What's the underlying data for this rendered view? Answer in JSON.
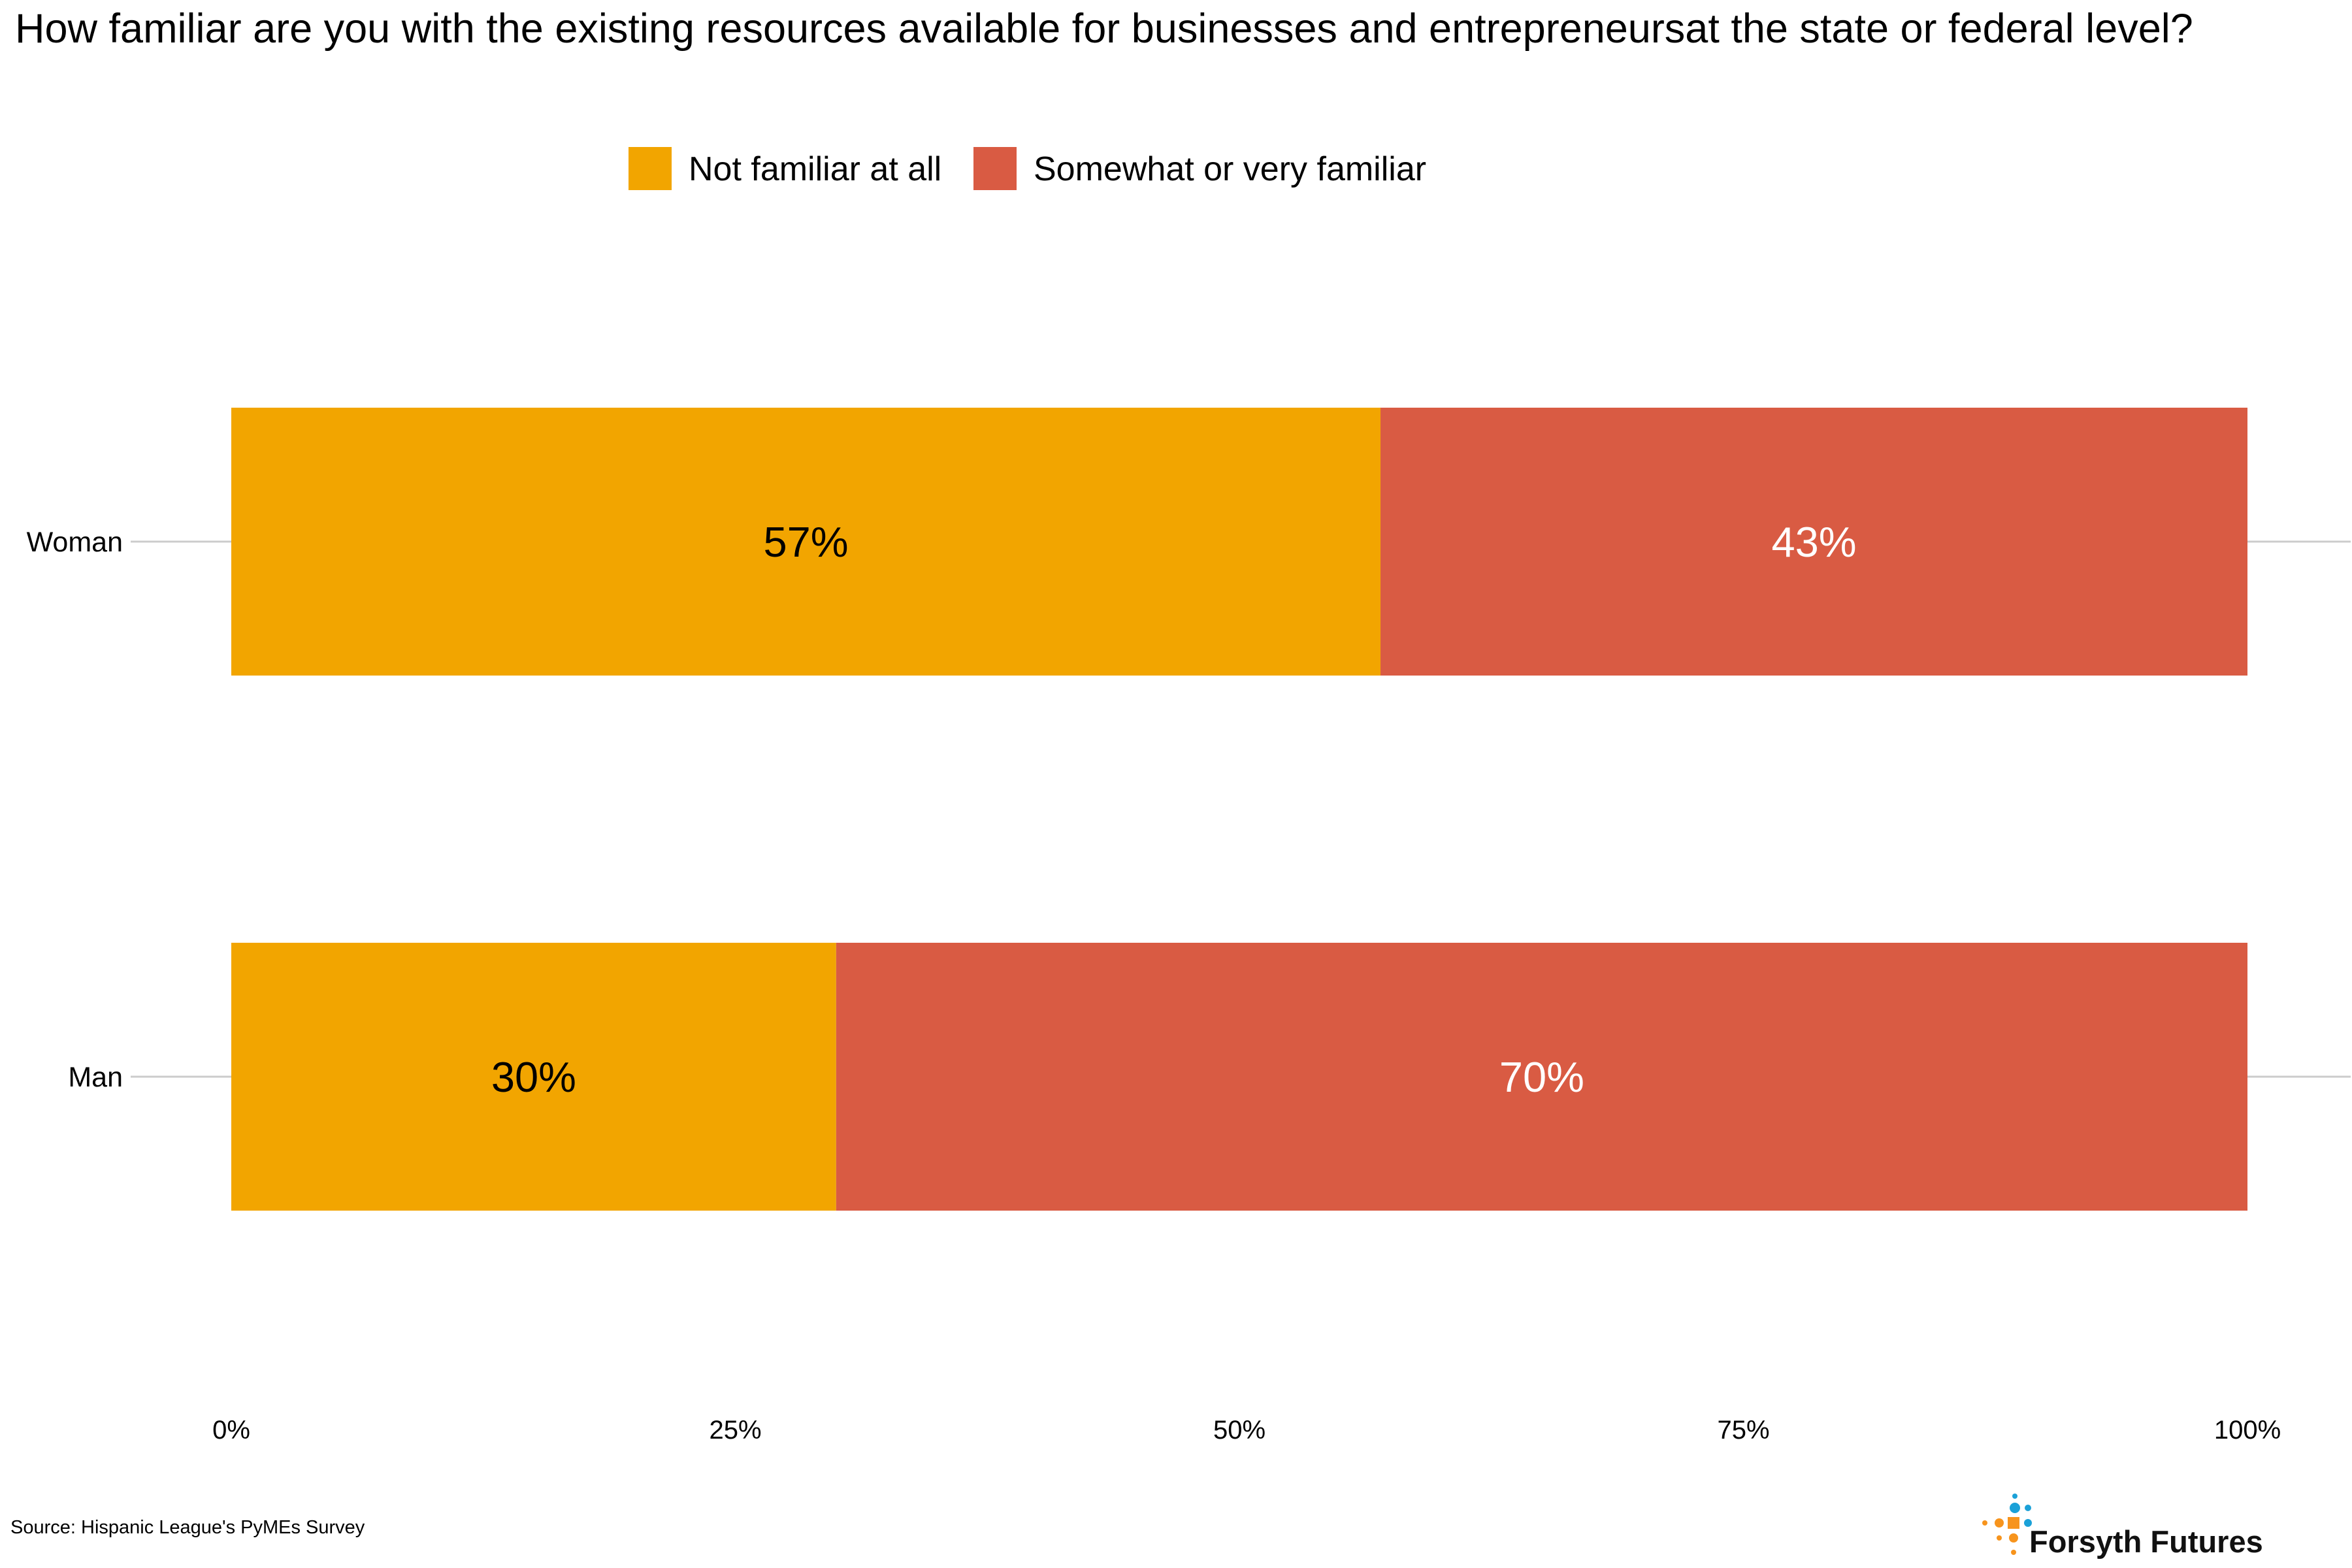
{
  "chart_data": {
    "type": "bar",
    "orientation": "horizontal",
    "stacked": true,
    "title": "How familiar are you with the existing resources available for businesses and entrepreneursat the state or federal level?",
    "categories": [
      "Woman",
      "Man"
    ],
    "series": [
      {
        "name": "Not familiar at all",
        "values": [
          57,
          30
        ],
        "labels": [
          "57%",
          "30%"
        ]
      },
      {
        "name": "Somewhat or very familiar",
        "values": [
          43,
          70
        ],
        "labels": [
          "43%",
          "70%"
        ]
      }
    ],
    "xlim": [
      0,
      100
    ],
    "x_ticks": [
      0,
      25,
      50,
      75,
      100
    ],
    "x_tick_labels": [
      "0%",
      "25%",
      "50%",
      "75%",
      "100%"
    ],
    "legend_position": "top",
    "grid": false
  },
  "colors": {
    "not_familiar": "#F2A500",
    "somewhat_familiar": "#D95B43",
    "label_dark": "#000000",
    "label_light": "#ffffff",
    "axis_line": "#cccccc",
    "logo_orange": "#F7941D",
    "logo_blue": "#1BA1D8"
  },
  "source": "Source: Hispanic League's PyMEs Survey",
  "logo": {
    "text": "Forsyth Futures",
    "icon": "forsyth-futures-dot-cross-icon"
  }
}
